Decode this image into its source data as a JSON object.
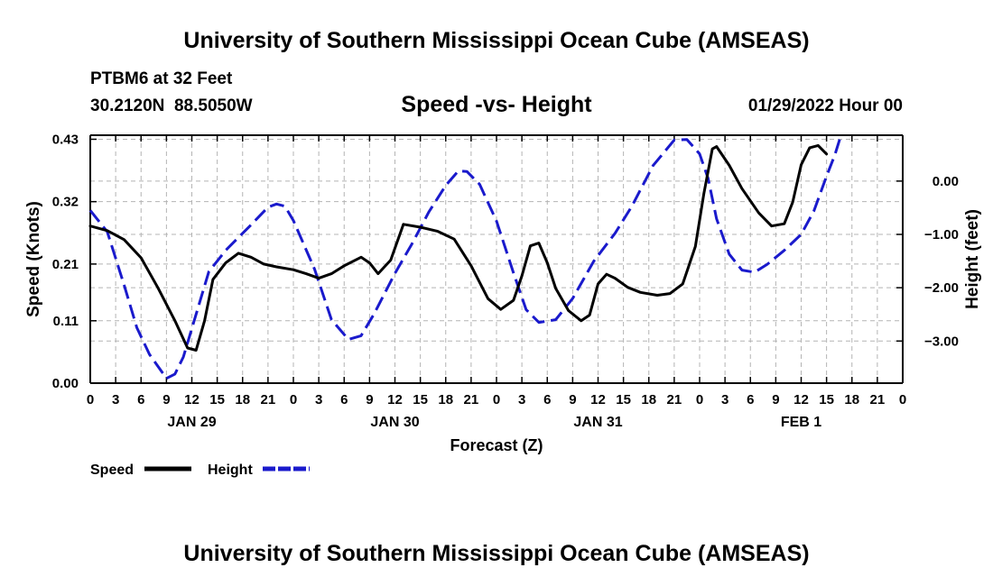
{
  "page": {
    "title": "University of Southern Mississippi Ocean Cube (AMSEAS)",
    "footer_title": "University of Southern Mississippi Ocean Cube (AMSEAS)",
    "station": "PTBM6 at 32 Feet",
    "coords": "30.2120N  88.5050W",
    "subtitle": "Speed -vs- Height",
    "datetime": "01/29/2022 Hour 00"
  },
  "chart_data": {
    "type": "line",
    "title": "Speed -vs- Height",
    "xlabel": "Forecast (Z)",
    "ylabel": "Speed (Knots)",
    "y2label": "Height (feet)",
    "xlim": [
      0,
      96
    ],
    "ylim": [
      0,
      0.4371
    ],
    "y2lim": [
      -3.79,
      0.86
    ],
    "colors": {
      "speed": "#000000",
      "height": "#1a1acc",
      "grid": "#b4b4b4"
    },
    "x_ticks": [
      0,
      3,
      6,
      9,
      12,
      15,
      18,
      21,
      24,
      27,
      30,
      33,
      36,
      39,
      42,
      45,
      48,
      51,
      54,
      57,
      60,
      63,
      66,
      69,
      72,
      75,
      78,
      81,
      84,
      87,
      90,
      93,
      96
    ],
    "x_tick_labels": [
      "0",
      "3",
      "6",
      "9",
      "12",
      "15",
      "18",
      "21",
      "0",
      "3",
      "6",
      "9",
      "12",
      "15",
      "18",
      "21",
      "0",
      "3",
      "6",
      "9",
      "12",
      "15",
      "18",
      "21",
      "0",
      "3",
      "6",
      "9",
      "12",
      "15",
      "18",
      "21",
      "0"
    ],
    "date_labels": [
      {
        "x": 12,
        "label": "JAN 29"
      },
      {
        "x": 36,
        "label": "JAN 30"
      },
      {
        "x": 60,
        "label": "JAN 31"
      },
      {
        "x": 84,
        "label": "FEB 1"
      }
    ],
    "y_ticks": [
      0.0,
      0.11,
      0.21,
      0.32,
      0.43
    ],
    "y_tick_labels": [
      "0.00",
      "0.11",
      "0.21",
      "0.32",
      "0.43"
    ],
    "y2_ticks": [
      0,
      -1,
      -2,
      -3
    ],
    "y2_tick_labels": [
      "0.00",
      "−1.00",
      "−2.00",
      "−3.00"
    ],
    "legend": [
      {
        "name": "Speed",
        "style": "solid"
      },
      {
        "name": "Height",
        "style": "dashed"
      }
    ],
    "series": [
      {
        "name": "Speed",
        "axis": "left",
        "points": [
          [
            0,
            0.277
          ],
          [
            2,
            0.269
          ],
          [
            4,
            0.253
          ],
          [
            6,
            0.221
          ],
          [
            8,
            0.168
          ],
          [
            10,
            0.11
          ],
          [
            11.5,
            0.062
          ],
          [
            12.5,
            0.058
          ],
          [
            13.5,
            0.11
          ],
          [
            14.5,
            0.183
          ],
          [
            16,
            0.212
          ],
          [
            17.5,
            0.229
          ],
          [
            19,
            0.222
          ],
          [
            20.5,
            0.21
          ],
          [
            22,
            0.205
          ],
          [
            24,
            0.2
          ],
          [
            25.5,
            0.193
          ],
          [
            27,
            0.185
          ],
          [
            28.5,
            0.193
          ],
          [
            30,
            0.207
          ],
          [
            32,
            0.222
          ],
          [
            33,
            0.212
          ],
          [
            34,
            0.193
          ],
          [
            35.5,
            0.217
          ],
          [
            37,
            0.28
          ],
          [
            39,
            0.275
          ],
          [
            41,
            0.268
          ],
          [
            43,
            0.254
          ],
          [
            45,
            0.207
          ],
          [
            47,
            0.149
          ],
          [
            48.5,
            0.13
          ],
          [
            50,
            0.146
          ],
          [
            51,
            0.189
          ],
          [
            52,
            0.242
          ],
          [
            53,
            0.247
          ],
          [
            54,
            0.212
          ],
          [
            55,
            0.167
          ],
          [
            56.5,
            0.128
          ],
          [
            58,
            0.11
          ],
          [
            59,
            0.12
          ],
          [
            60,
            0.175
          ],
          [
            61,
            0.192
          ],
          [
            62,
            0.185
          ],
          [
            63.5,
            0.169
          ],
          [
            65,
            0.16
          ],
          [
            67,
            0.155
          ],
          [
            68.5,
            0.158
          ],
          [
            70,
            0.175
          ],
          [
            71.5,
            0.241
          ],
          [
            72.5,
            0.334
          ],
          [
            73.5,
            0.413
          ],
          [
            74,
            0.417
          ],
          [
            75.5,
            0.384
          ],
          [
            77,
            0.343
          ],
          [
            79,
            0.3
          ],
          [
            80.5,
            0.277
          ],
          [
            82,
            0.281
          ],
          [
            83,
            0.319
          ],
          [
            84,
            0.385
          ],
          [
            85,
            0.415
          ],
          [
            86,
            0.419
          ],
          [
            87,
            0.404
          ]
        ]
      },
      {
        "name": "Height",
        "axis": "right",
        "points": [
          [
            0,
            -0.55
          ],
          [
            2,
            -0.95
          ],
          [
            4,
            -1.95
          ],
          [
            5.5,
            -2.75
          ],
          [
            7,
            -3.25
          ],
          [
            9,
            -3.7
          ],
          [
            10,
            -3.62
          ],
          [
            11,
            -3.3
          ],
          [
            12.5,
            -2.5
          ],
          [
            14,
            -1.7
          ],
          [
            16,
            -1.3
          ],
          [
            19,
            -0.82
          ],
          [
            21,
            -0.49
          ],
          [
            22,
            -0.43
          ],
          [
            23,
            -0.47
          ],
          [
            24,
            -0.74
          ],
          [
            26.5,
            -1.65
          ],
          [
            28.5,
            -2.6
          ],
          [
            30.5,
            -2.97
          ],
          [
            32,
            -2.9
          ],
          [
            33.5,
            -2.5
          ],
          [
            36,
            -1.73
          ],
          [
            38,
            -1.18
          ],
          [
            40,
            -0.58
          ],
          [
            42,
            -0.08
          ],
          [
            43.5,
            0.19
          ],
          [
            44.5,
            0.18
          ],
          [
            46,
            -0.06
          ],
          [
            48,
            -0.75
          ],
          [
            50,
            -1.72
          ],
          [
            51.5,
            -2.41
          ],
          [
            53,
            -2.65
          ],
          [
            55,
            -2.6
          ],
          [
            57,
            -2.2
          ],
          [
            59.5,
            -1.5
          ],
          [
            62,
            -0.98
          ],
          [
            64,
            -0.47
          ],
          [
            66.5,
            0.29
          ],
          [
            69,
            0.77
          ],
          [
            70.5,
            0.78
          ],
          [
            72,
            0.51
          ],
          [
            73,
            0.05
          ],
          [
            74,
            -0.71
          ],
          [
            75.5,
            -1.37
          ],
          [
            77,
            -1.67
          ],
          [
            78.5,
            -1.71
          ],
          [
            80,
            -1.56
          ],
          [
            82,
            -1.3
          ],
          [
            84,
            -1.0
          ],
          [
            85.5,
            -0.56
          ],
          [
            87,
            0.09
          ],
          [
            88,
            0.5
          ],
          [
            88.7,
            0.86
          ]
        ]
      }
    ]
  }
}
